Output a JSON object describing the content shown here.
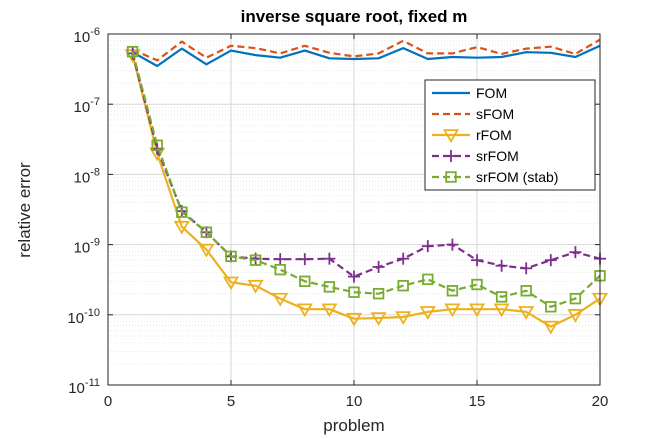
{
  "chart_data": {
    "type": "line",
    "title": "inverse square root, fixed m",
    "xlabel": "problem",
    "ylabel": "relative error",
    "xlim": [
      0,
      20
    ],
    "ylim": [
      1e-11,
      1e-06
    ],
    "yscale": "log",
    "grid": "on",
    "legend_location": "top-right",
    "x_ticks": [
      0,
      5,
      10,
      15,
      20
    ],
    "y_ticks": [
      {
        "base": "10",
        "exp": "-11",
        "value": 1e-11
      },
      {
        "base": "10",
        "exp": "-10",
        "value": 1e-10
      },
      {
        "base": "10",
        "exp": "-9",
        "value": 1e-09
      },
      {
        "base": "10",
        "exp": "-8",
        "value": 1e-08
      },
      {
        "base": "10",
        "exp": "-7",
        "value": 1e-07
      },
      {
        "base": "10",
        "exp": "-6",
        "value": 1e-06
      }
    ],
    "x": [
      1,
      2,
      3,
      4,
      5,
      6,
      7,
      8,
      9,
      10,
      11,
      12,
      13,
      14,
      15,
      16,
      17,
      18,
      19,
      20
    ],
    "series": [
      {
        "name": "FOM",
        "color": "#0072BD",
        "dash": "solid",
        "marker": "none",
        "values": [
          5.5e-07,
          3.5e-07,
          6.2e-07,
          3.7e-07,
          5.8e-07,
          5e-07,
          4.6e-07,
          5.8e-07,
          4.5e-07,
          4.4e-07,
          4.5e-07,
          6.3e-07,
          4.4e-07,
          4.7e-07,
          4.6e-07,
          4.7e-07,
          5.5e-07,
          5.4e-07,
          4.7e-07,
          6.8e-07
        ]
      },
      {
        "name": "sFOM",
        "color": "#D95319",
        "dash": "dashed",
        "marker": "none",
        "values": [
          6e-07,
          4.2e-07,
          7.8e-07,
          4.6e-07,
          6.8e-07,
          6.3e-07,
          5.3e-07,
          6.8e-07,
          5.4e-07,
          4.8e-07,
          5.3e-07,
          8e-07,
          5.3e-07,
          5.3e-07,
          6.5e-07,
          5.2e-07,
          6.2e-07,
          6.6e-07,
          5.2e-07,
          8.3e-07
        ]
      },
      {
        "name": "rFOM",
        "color": "#EDB120",
        "dash": "solid",
        "marker": "triangle-down",
        "values": [
          5e-07,
          2e-08,
          1.8e-09,
          8.5e-10,
          2.9e-10,
          2.6e-10,
          1.7e-10,
          1.2e-10,
          1.2e-10,
          8.8e-11,
          9e-11,
          9.3e-11,
          1.1e-10,
          1.2e-10,
          1.2e-10,
          1.2e-10,
          1.1e-10,
          6.8e-11,
          1e-10,
          1.7e-10
        ]
      },
      {
        "name": "srFOM",
        "color": "#7E2F8E",
        "dash": "dashed",
        "marker": "plus",
        "values": [
          5.3e-07,
          2.3e-08,
          3e-09,
          1.5e-09,
          6.8e-10,
          6.3e-10,
          6.2e-10,
          6.2e-10,
          6.3e-10,
          3.5e-10,
          4.8e-10,
          6.3e-10,
          9.5e-10,
          1e-09,
          6e-10,
          5e-10,
          4.6e-10,
          6e-10,
          7.8e-10,
          6.3e-10
        ]
      },
      {
        "name": "srFOM (stab)",
        "color": "#77AC30",
        "dash": "dashed",
        "marker": "square",
        "values": [
          5.6e-07,
          2.6e-08,
          2.9e-09,
          1.5e-09,
          6.8e-10,
          6e-10,
          4.4e-10,
          3e-10,
          2.5e-10,
          2.1e-10,
          2e-10,
          2.6e-10,
          3.2e-10,
          2.2e-10,
          2.7e-10,
          1.8e-10,
          2.2e-10,
          1.3e-10,
          1.7e-10,
          3.6e-10
        ]
      }
    ]
  }
}
